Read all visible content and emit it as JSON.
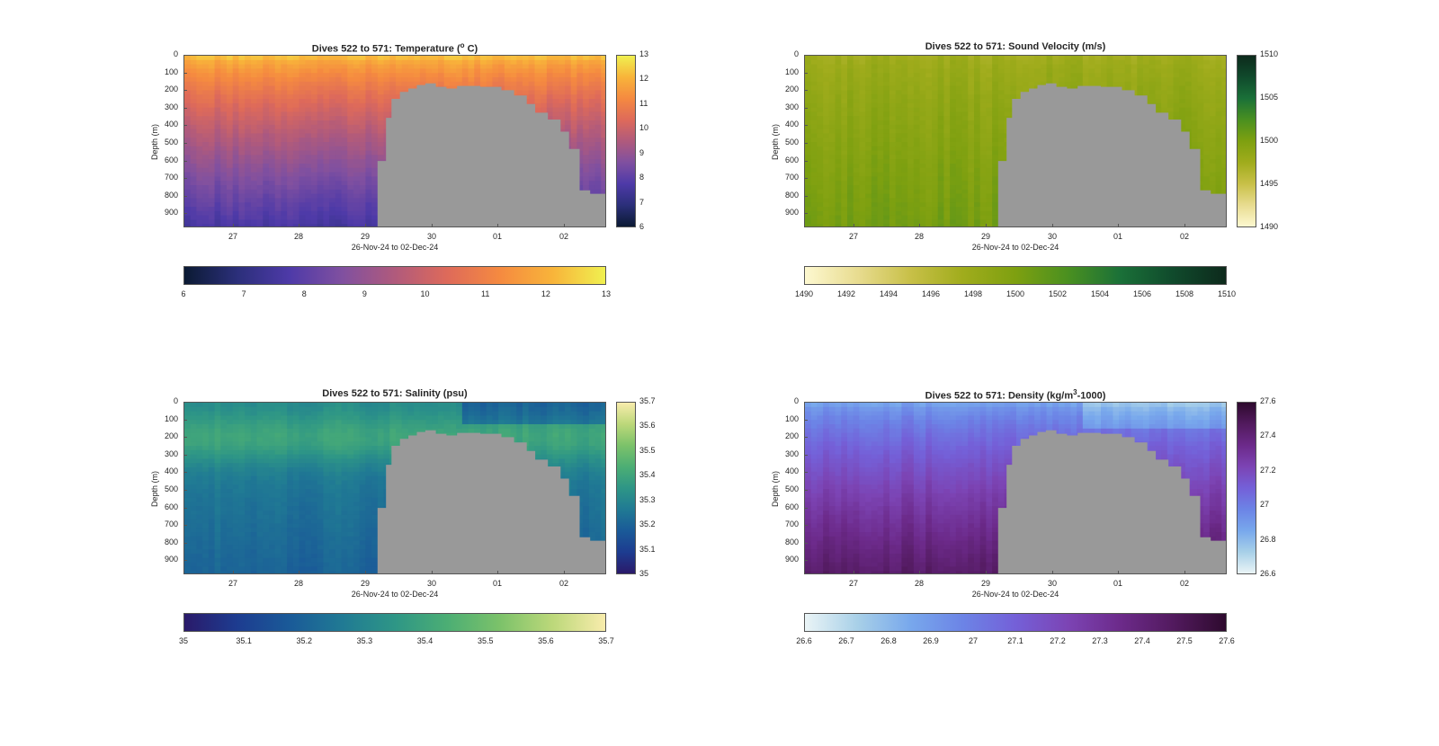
{
  "figure": {
    "background": "#ffffff",
    "mask_color": "#999999"
  },
  "chart_data": [
    {
      "id": "temperature",
      "type": "heatmap",
      "title_main": "Dives 522 to 571: Temperature (",
      "title_sup": "o",
      "title_tail": " C)",
      "xlabel": "26-Nov-24 to 02-Dec-24",
      "ylabel": "Depth (m)",
      "ylim": [
        0,
        980
      ],
      "yticks": [
        "0",
        "100",
        "200",
        "300",
        "400",
        "500",
        "600",
        "700",
        "800",
        "900"
      ],
      "xticks": [
        "27",
        "28",
        "29",
        "30",
        "01",
        "02"
      ],
      "clim": [
        6,
        13
      ],
      "cbar_ticks": [
        "6",
        "7",
        "8",
        "9",
        "10",
        "11",
        "12",
        "13"
      ],
      "hcbar_ticks": [
        "6",
        "7",
        "8",
        "9",
        "10",
        "11",
        "12",
        "13"
      ],
      "colormap": [
        "#0b1a33",
        "#2b2f7a",
        "#4e3aa8",
        "#8050a0",
        "#b05a7c",
        "#de6a5a",
        "#f58a40",
        "#f8b43a",
        "#f0f050"
      ],
      "surface_value": 12.2,
      "deep_value": 7.6
    },
    {
      "id": "sound-velocity",
      "type": "heatmap",
      "title_main": "Dives 522 to 571: Sound Velocity (m/s)",
      "title_sup": "",
      "title_tail": "",
      "xlabel": "26-Nov-24 to 02-Dec-24",
      "ylabel": "Depth (m)",
      "ylim": [
        0,
        980
      ],
      "yticks": [
        "0",
        "100",
        "200",
        "300",
        "400",
        "500",
        "600",
        "700",
        "800",
        "900"
      ],
      "xticks": [
        "27",
        "28",
        "29",
        "30",
        "01",
        "02"
      ],
      "clim": [
        1490,
        1510
      ],
      "cbar_ticks": [
        "1490",
        "1495",
        "1500",
        "1505",
        "1510"
      ],
      "hcbar_ticks": [
        "1490",
        "1492",
        "1494",
        "1496",
        "1498",
        "1500",
        "1502",
        "1504",
        "1506",
        "1508",
        "1510"
      ],
      "colormap": [
        "#fdf8d0",
        "#e8dc90",
        "#c8c048",
        "#a0ac1c",
        "#7ea010",
        "#4a9020",
        "#1a7038",
        "#104a2c",
        "#0d2a1c"
      ],
      "surface_value": 1497.5,
      "deep_value": 1500.5
    },
    {
      "id": "salinity",
      "type": "heatmap",
      "title_main": "Dives 522 to 571: Salinity (psu)",
      "title_sup": "",
      "title_tail": "",
      "xlabel": "26-Nov-24 to 02-Dec-24",
      "ylabel": "Depth (m)",
      "ylim": [
        0,
        980
      ],
      "yticks": [
        "0",
        "100",
        "200",
        "300",
        "400",
        "500",
        "600",
        "700",
        "800",
        "900"
      ],
      "xticks": [
        "27",
        "28",
        "29",
        "30",
        "01",
        "02"
      ],
      "clim": [
        35,
        35.7
      ],
      "cbar_ticks": [
        "35",
        "35.1",
        "35.2",
        "35.3",
        "35.4",
        "35.5",
        "35.6",
        "35.7"
      ],
      "hcbar_ticks": [
        "35",
        "35.1",
        "35.2",
        "35.3",
        "35.4",
        "35.5",
        "35.6",
        "35.7"
      ],
      "colormap": [
        "#2a1a6a",
        "#1d3c90",
        "#1a5a98",
        "#207a94",
        "#2e9686",
        "#4cae74",
        "#7cc26a",
        "#bcd87a",
        "#f8ecac"
      ],
      "surface_value": 35.3,
      "deep_value": 35.22
    },
    {
      "id": "density",
      "type": "heatmap",
      "title_main": "Dives 522 to 571: Density (kg/m",
      "title_sup": "3",
      "title_tail": "-1000)",
      "xlabel": "26-Nov-24 to 02-Dec-24",
      "ylabel": "Depth (m)",
      "ylim": [
        0,
        980
      ],
      "yticks": [
        "0",
        "100",
        "200",
        "300",
        "400",
        "500",
        "600",
        "700",
        "800",
        "900"
      ],
      "xticks": [
        "27",
        "28",
        "29",
        "30",
        "01",
        "02"
      ],
      "clim": [
        26.6,
        27.6
      ],
      "cbar_ticks": [
        "26.6",
        "26.8",
        "27",
        "27.2",
        "27.4",
        "27.6"
      ],
      "hcbar_ticks": [
        "26.6",
        "26.7",
        "26.8",
        "26.9",
        "27",
        "27.1",
        "27.2",
        "27.3",
        "27.4",
        "27.5",
        "27.6"
      ],
      "colormap": [
        "#eaf4f6",
        "#a8d0e8",
        "#78a8ec",
        "#6c84e6",
        "#7460d8",
        "#7c44b4",
        "#6c2a8a",
        "#521a5e",
        "#2e0a2e"
      ],
      "surface_value": 26.88,
      "deep_value": 27.45
    }
  ]
}
